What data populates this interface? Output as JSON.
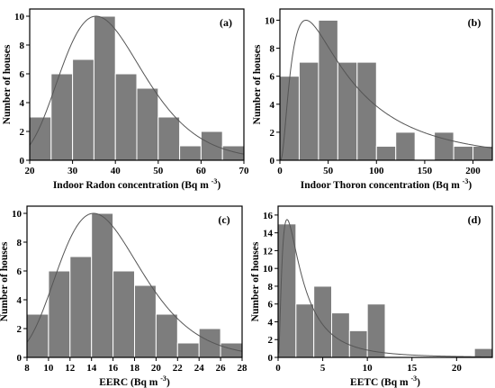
{
  "chart_data": [
    {
      "type": "bar",
      "panel": "(a)",
      "xlabel": "Indoor Radon concentration (Bq m",
      "xunit_sup": "-3",
      "ylabel": "Number of houses",
      "xlim": [
        20,
        70
      ],
      "ylim": [
        0,
        10.5
      ],
      "xticks": [
        20,
        30,
        40,
        50,
        60,
        70
      ],
      "yticks": [
        0,
        2,
        4,
        6,
        8,
        10
      ],
      "bin_edges": [
        20,
        25,
        30,
        35,
        40,
        45,
        50,
        55,
        60,
        65,
        70
      ],
      "values": [
        3,
        6,
        7,
        10,
        6,
        5,
        3,
        1,
        2,
        1
      ],
      "fit_curve": {
        "shape": "lognormal",
        "peak_x": 35.5,
        "peak_y": 10,
        "sigma": 0.27
      },
      "bar_color": "#7d7d7d",
      "curve_color": "#555555"
    },
    {
      "type": "bar",
      "panel": "(b)",
      "xlabel": "Indoor Thoron concentration (Bq m",
      "xunit_sup": "-3",
      "ylabel": "Number of houses",
      "xlim": [
        0,
        220
      ],
      "ylim": [
        0,
        10.8
      ],
      "xticks": [
        0,
        50,
        100,
        150,
        200
      ],
      "yticks": [
        0,
        2,
        4,
        6,
        8,
        10
      ],
      "bin_edges": [
        0,
        20,
        40,
        60,
        80,
        100,
        120,
        140,
        160,
        180,
        200,
        220
      ],
      "values": [
        6,
        7,
        10,
        7,
        7,
        1,
        2,
        0,
        2,
        1,
        1
      ],
      "fit_curve": {
        "shape": "lognormal",
        "peak_x": 27,
        "peak_y": 10,
        "sigma": 0.95
      },
      "bar_color": "#7d7d7d",
      "curve_color": "#555555"
    },
    {
      "type": "bar",
      "panel": "(c)",
      "xlabel": "EERC (Bq m",
      "xunit_sup": "-3",
      "ylabel": "Number of houses",
      "xlim": [
        8,
        28
      ],
      "ylim": [
        0,
        10.5
      ],
      "xticks": [
        8,
        10,
        12,
        14,
        16,
        18,
        20,
        22,
        24,
        26,
        28
      ],
      "yticks": [
        0,
        2,
        4,
        6,
        8,
        10
      ],
      "bin_edges": [
        8,
        10,
        12,
        14,
        16,
        18,
        20,
        22,
        24,
        26,
        28
      ],
      "values": [
        3,
        6,
        7,
        10,
        6,
        5,
        3,
        1,
        2,
        1
      ],
      "fit_curve": {
        "shape": "lognormal",
        "peak_x": 14.2,
        "peak_y": 10,
        "sigma": 0.27
      },
      "bar_color": "#7d7d7d",
      "curve_color": "#555555"
    },
    {
      "type": "bar",
      "panel": "(d)",
      "xlabel": "EETC (Bq m",
      "xunit_sup": "-3",
      "ylabel": "Number of houses",
      "xlim": [
        0,
        24
      ],
      "ylim": [
        0,
        17
      ],
      "xticks": [
        0,
        5,
        10,
        15,
        20
      ],
      "yticks": [
        0,
        2,
        4,
        6,
        8,
        10,
        12,
        14,
        16
      ],
      "bin_edges": [
        0,
        2,
        4,
        6,
        8,
        10,
        12,
        14,
        16,
        18,
        20,
        22,
        24
      ],
      "values": [
        15,
        6,
        8,
        5,
        3,
        6,
        0,
        0,
        0,
        0,
        0,
        1
      ],
      "fit_curve": {
        "shape": "lognormal",
        "peak_x": 1.0,
        "peak_y": 15.5,
        "sigma": 0.95
      },
      "bar_color": "#7d7d7d",
      "curve_color": "#555555"
    }
  ]
}
